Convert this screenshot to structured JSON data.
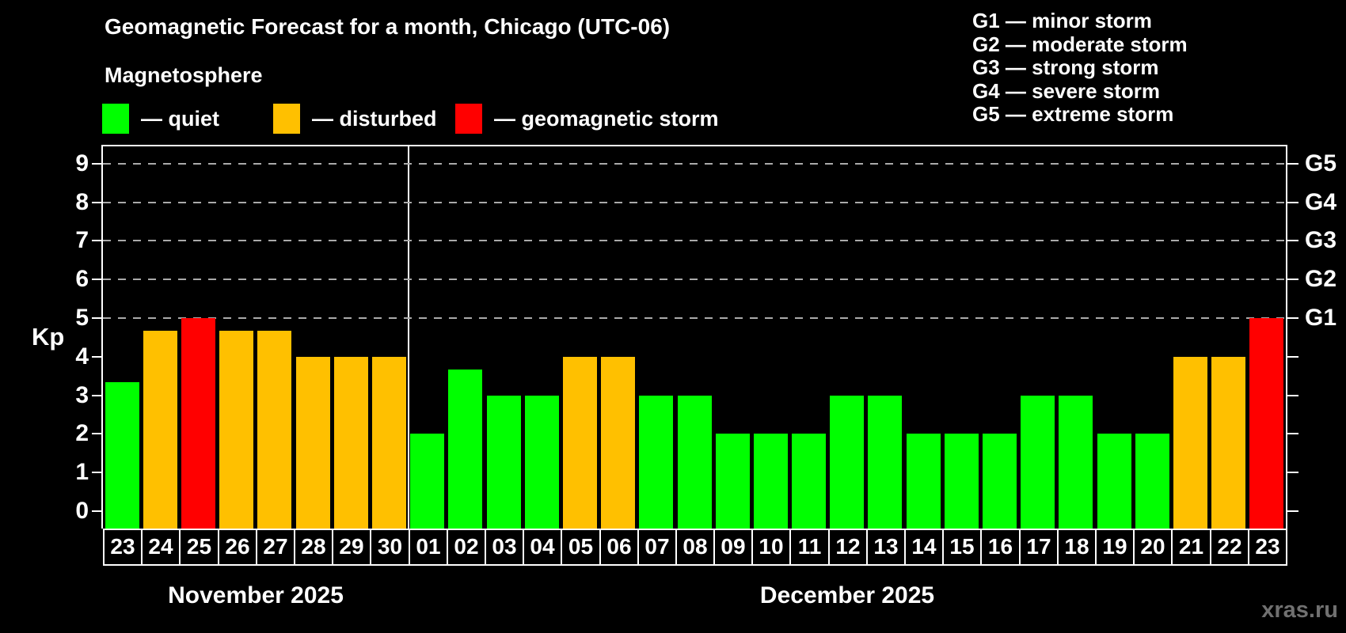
{
  "header": {
    "title": "Geomagnetic Forecast for a month, Chicago (UTC-06)",
    "subtitle": "Magnetosphere"
  },
  "legend": {
    "items": [
      {
        "label": "— quiet",
        "status": "quiet",
        "color": "#00ff00"
      },
      {
        "label": "— disturbed",
        "status": "disturbed",
        "color": "#ffc000"
      },
      {
        "label": "— geomagnetic storm",
        "status": "storm",
        "color": "#ff0000"
      }
    ]
  },
  "g_legend": {
    "items": [
      "G1 — minor storm",
      "G2 — moderate storm",
      "G3 — strong storm",
      "G4 — severe storm",
      "G5 — extreme storm"
    ]
  },
  "y_axis": {
    "label": "Kp",
    "ticks": [
      0,
      1,
      2,
      3,
      4,
      5,
      6,
      7,
      8,
      9
    ]
  },
  "right_axis": {
    "ticks": [
      0,
      1,
      2,
      3,
      4,
      5,
      6,
      7,
      8,
      9
    ],
    "labels": {
      "5": "G1",
      "6": "G2",
      "7": "G3",
      "8": "G4",
      "9": "G5"
    }
  },
  "watermark": "xras.ru",
  "chart_data": {
    "type": "bar",
    "title": "Geomagnetic Forecast for a month, Chicago (UTC-06)",
    "subtitle": "Magnetosphere",
    "ylabel": "Kp",
    "ylim": [
      0,
      9.5
    ],
    "grid_kp": [
      5,
      6,
      7,
      8,
      9
    ],
    "grid_on": true,
    "colors": {
      "quiet": "#00ff00",
      "disturbed": "#ffc000",
      "storm": "#ff0000"
    },
    "months": [
      {
        "label": "November 2025",
        "count": 8
      },
      {
        "label": "December 2025",
        "count": 23
      }
    ],
    "points": [
      {
        "day": "23",
        "kp": 3.33,
        "status": "quiet"
      },
      {
        "day": "24",
        "kp": 4.67,
        "status": "disturbed"
      },
      {
        "day": "25",
        "kp": 5.0,
        "status": "storm"
      },
      {
        "day": "26",
        "kp": 4.67,
        "status": "disturbed"
      },
      {
        "day": "27",
        "kp": 4.67,
        "status": "disturbed"
      },
      {
        "day": "28",
        "kp": 4.0,
        "status": "disturbed"
      },
      {
        "day": "29",
        "kp": 4.0,
        "status": "disturbed"
      },
      {
        "day": "30",
        "kp": 4.0,
        "status": "disturbed"
      },
      {
        "day": "01",
        "kp": 2.0,
        "status": "quiet"
      },
      {
        "day": "02",
        "kp": 3.67,
        "status": "quiet"
      },
      {
        "day": "03",
        "kp": 3.0,
        "status": "quiet"
      },
      {
        "day": "04",
        "kp": 3.0,
        "status": "quiet"
      },
      {
        "day": "05",
        "kp": 4.0,
        "status": "disturbed"
      },
      {
        "day": "06",
        "kp": 4.0,
        "status": "disturbed"
      },
      {
        "day": "07",
        "kp": 3.0,
        "status": "quiet"
      },
      {
        "day": "08",
        "kp": 3.0,
        "status": "quiet"
      },
      {
        "day": "09",
        "kp": 2.0,
        "status": "quiet"
      },
      {
        "day": "10",
        "kp": 2.0,
        "status": "quiet"
      },
      {
        "day": "11",
        "kp": 2.0,
        "status": "quiet"
      },
      {
        "day": "12",
        "kp": 3.0,
        "status": "quiet"
      },
      {
        "day": "13",
        "kp": 3.0,
        "status": "quiet"
      },
      {
        "day": "14",
        "kp": 2.0,
        "status": "quiet"
      },
      {
        "day": "15",
        "kp": 2.0,
        "status": "quiet"
      },
      {
        "day": "16",
        "kp": 2.0,
        "status": "quiet"
      },
      {
        "day": "17",
        "kp": 3.0,
        "status": "quiet"
      },
      {
        "day": "18",
        "kp": 3.0,
        "status": "quiet"
      },
      {
        "day": "19",
        "kp": 2.0,
        "status": "quiet"
      },
      {
        "day": "20",
        "kp": 2.0,
        "status": "quiet"
      },
      {
        "day": "21",
        "kp": 4.0,
        "status": "disturbed"
      },
      {
        "day": "22",
        "kp": 4.0,
        "status": "disturbed"
      },
      {
        "day": "23",
        "kp": 5.0,
        "status": "storm"
      }
    ]
  }
}
